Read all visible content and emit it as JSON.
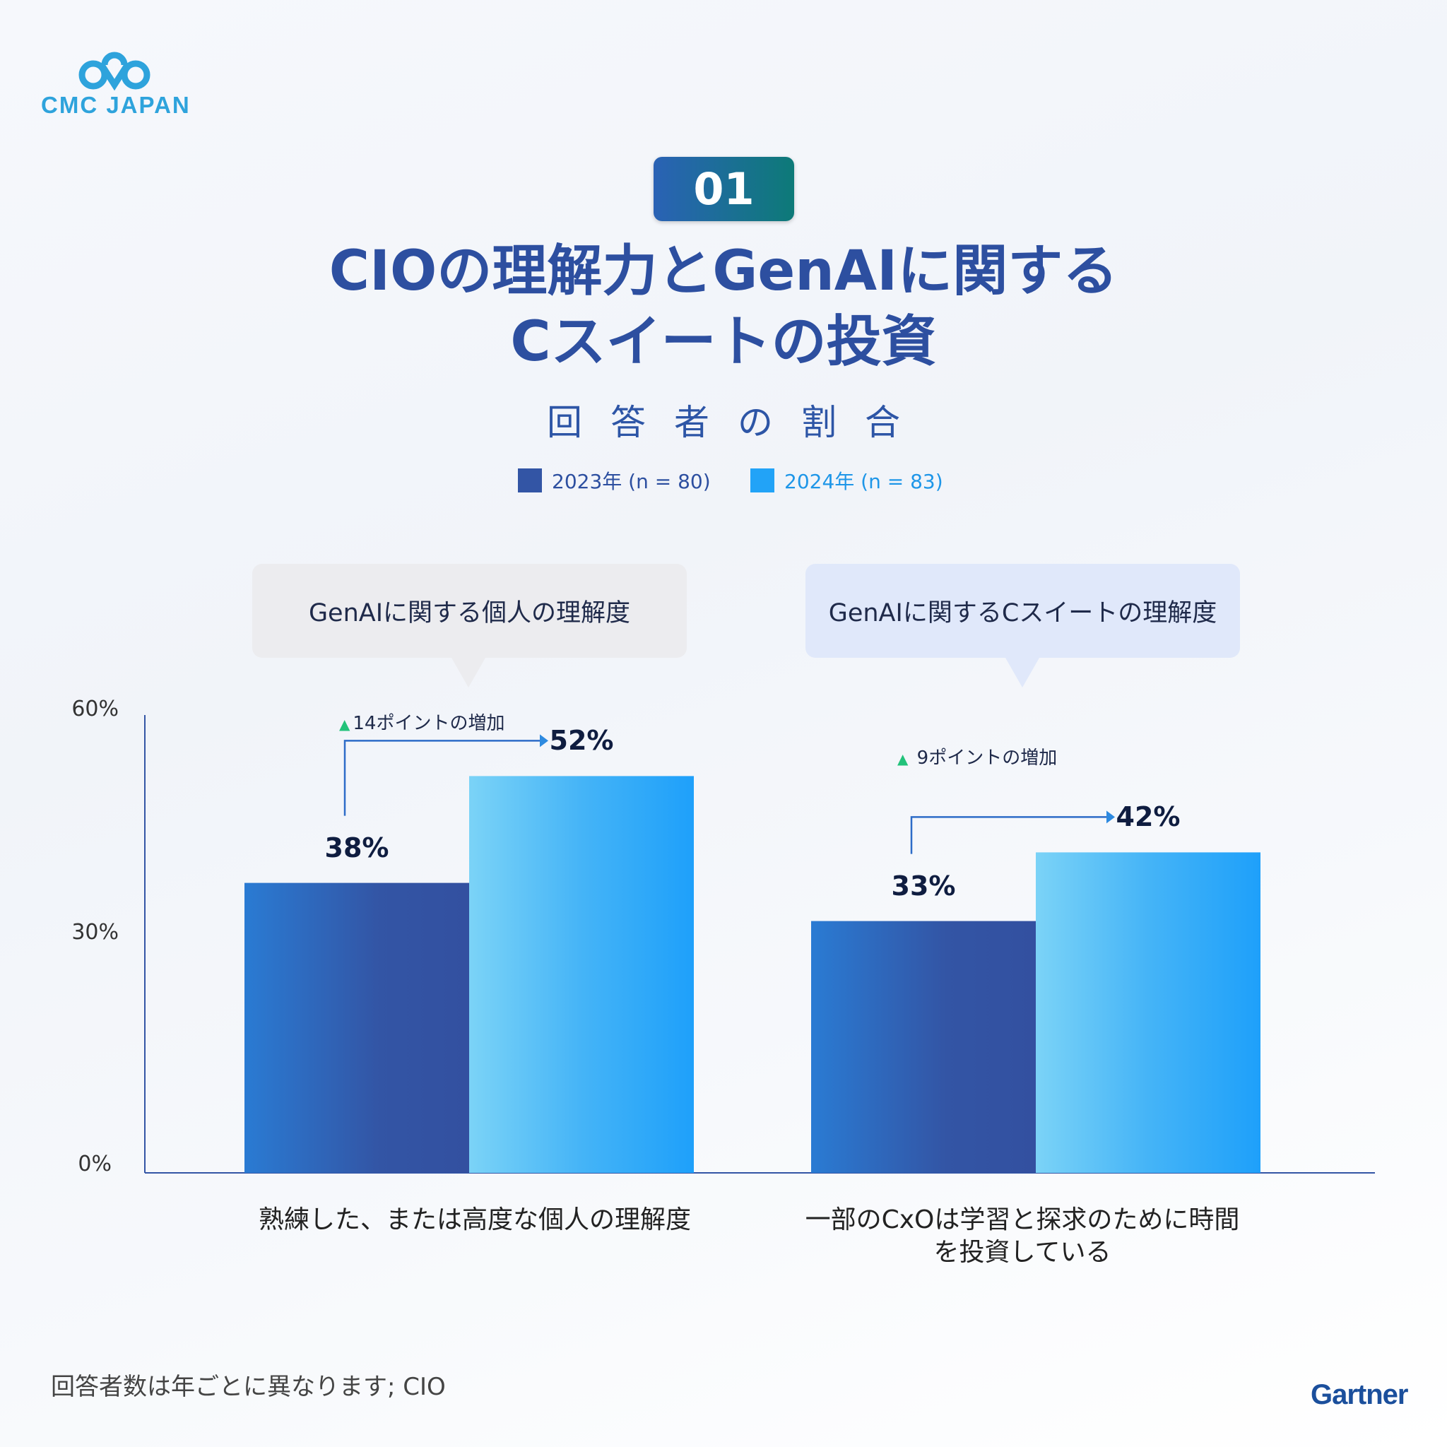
{
  "brand": {
    "logo_text": "CMC JAPAN",
    "partner_logo": "Gartner",
    "logo_color": "#2ea3dc"
  },
  "badge": "01",
  "title": {
    "line1": "CIOの理解力とGenAIに関する",
    "line2": "Cスイートの投資"
  },
  "subtitle": "回答者の割合",
  "callouts": [
    "GenAIに関する個人の理解度",
    "GenAIに関するCスイートの理解度"
  ],
  "footnote": "回答者数は年ごとに異なります; CIO",
  "chart_data": {
    "type": "bar",
    "categories": [
      "熟練した、または高度な個人の理解度",
      "一部のCxOは学習と探求のために時間を投資している"
    ],
    "category_lines": [
      [
        "熟練した、または高度な個人の理解度"
      ],
      [
        "一部のCxOは学習と探求のために時間",
        "を投資している"
      ]
    ],
    "series": [
      {
        "name": "2023年 (n = 80)",
        "values": [
          38,
          33
        ],
        "color": "#3355a5"
      },
      {
        "name": "2024年 (n = 83)",
        "values": [
          52,
          42
        ],
        "color": "#22a3f7"
      }
    ],
    "value_labels": [
      [
        "38%",
        "33%"
      ],
      [
        "52%",
        "42%"
      ]
    ],
    "annotations": [
      "14ポイントの増加",
      "9ポイントの増加"
    ],
    "yticks": [
      "0%",
      "30%",
      "60%"
    ],
    "ylim": [
      0,
      60
    ],
    "legend": "top-center",
    "grid": false
  }
}
